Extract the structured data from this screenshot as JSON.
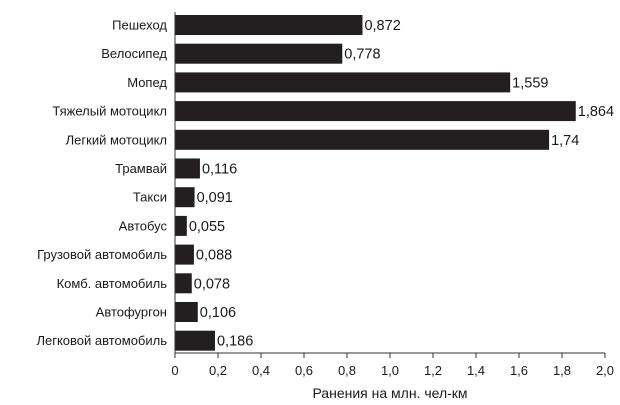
{
  "chart_data": {
    "type": "bar",
    "orientation": "horizontal",
    "categories": [
      "Пешеход",
      "Велосипед",
      "Мопед",
      "Тяжелый мотоцикл",
      "Легкий мотоцикл",
      "Трамвай",
      "Такси",
      "Автобус",
      "Грузовой автомобиль",
      "Комб. автомобиль",
      "Автофургон",
      "Легковой автомобиль"
    ],
    "values": [
      0.872,
      0.778,
      1.559,
      1.864,
      1.74,
      0.116,
      0.091,
      0.055,
      0.088,
      0.078,
      0.106,
      0.186
    ],
    "value_labels": [
      "0,872",
      "0,778",
      "1,559",
      "1,864",
      "1,74",
      "0,116",
      "0,091",
      "0,055",
      "0,088",
      "0,078",
      "0,106",
      "0,186"
    ],
    "xlabel": "Ранения на млн. чел-км",
    "ylabel": "",
    "xlim": [
      0,
      2.0
    ],
    "xticks": [
      0,
      0.2,
      0.4,
      0.6,
      0.8,
      1.0,
      1.2,
      1.4,
      1.6,
      1.8,
      2.0
    ],
    "xtick_labels": [
      "0",
      "0,2",
      "0,4",
      "0,6",
      "0,8",
      "1,0",
      "1,2",
      "1,4",
      "1,6",
      "1,8",
      "2,0"
    ],
    "grid": false,
    "legend": "none",
    "bar_color": "#231f20"
  }
}
